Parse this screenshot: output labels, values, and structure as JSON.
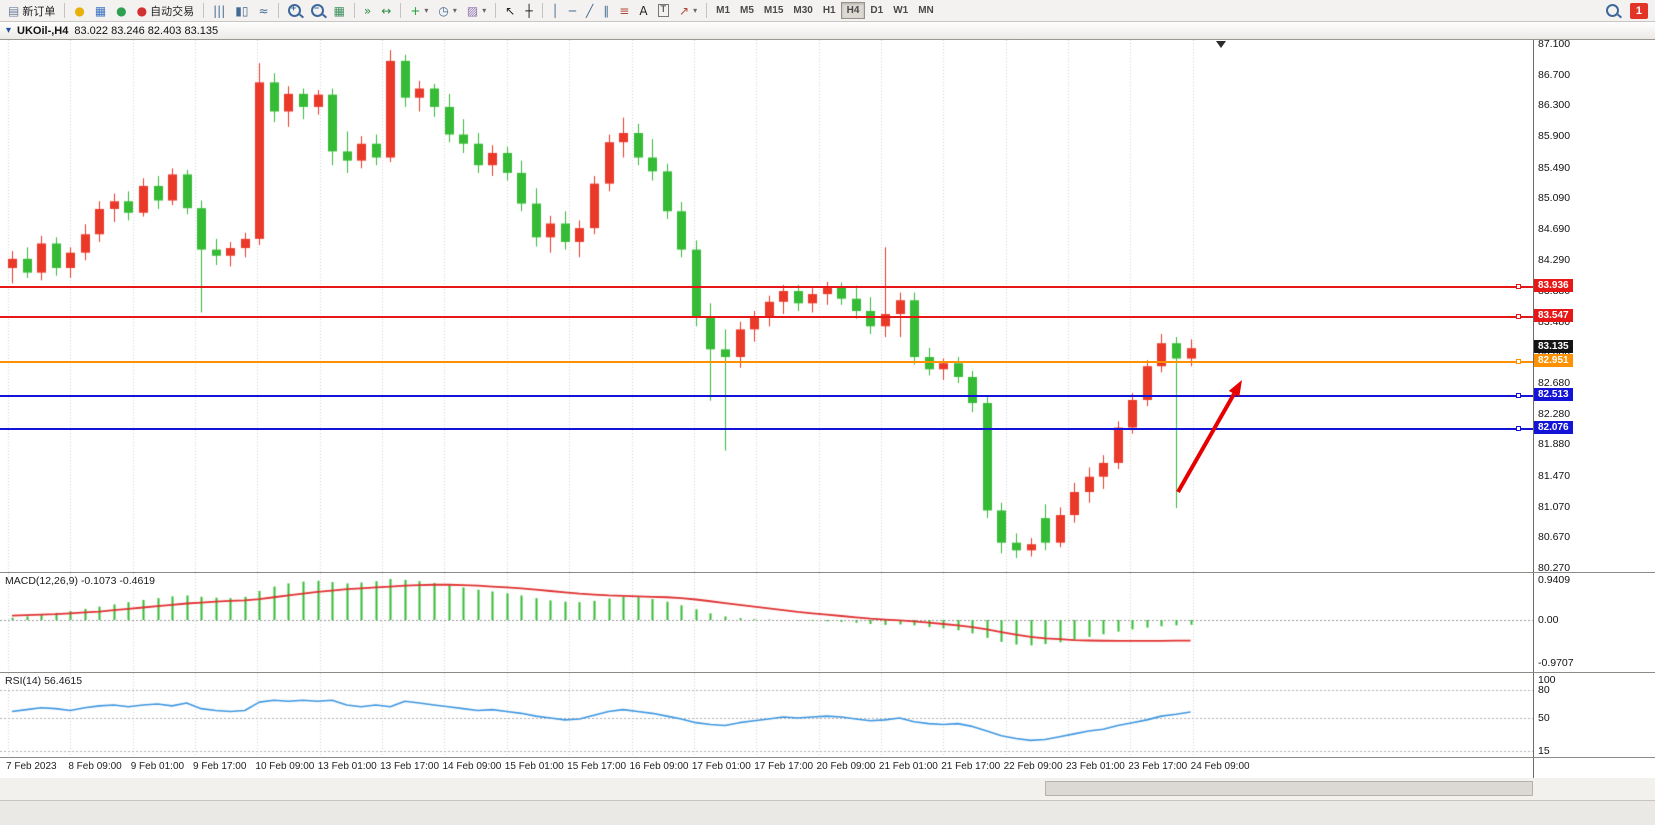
{
  "toolbar": {
    "active_timeframe": "H4",
    "notification_badge": "1",
    "items": [
      {
        "t": "btn",
        "name": "new-order-button",
        "icon": "new-order-icon",
        "glyph": "▤",
        "color": "#6b7f9e",
        "label": "新订单"
      },
      {
        "t": "sep"
      },
      {
        "t": "btn",
        "name": "market-watch-button",
        "icon": "market-watch-icon",
        "glyph": "●",
        "color": "#e8b00a"
      },
      {
        "t": "btn",
        "name": "data-window-button",
        "icon": "data-window-icon",
        "glyph": "▦",
        "color": "#3b74c0"
      },
      {
        "t": "btn",
        "name": "navigator-button",
        "icon": "navigator-icon",
        "glyph": "●",
        "color": "#2fa052"
      },
      {
        "t": "btn",
        "name": "autotrading-button",
        "icon": "autotrading-icon",
        "glyph": "●",
        "color": "#d23131",
        "label": "自动交易"
      },
      {
        "t": "sep"
      },
      {
        "t": "btn",
        "name": "bar-chart-button",
        "icon": "bar-chart-icon",
        "glyph": "|||",
        "color": "#456a92"
      },
      {
        "t": "btn",
        "name": "candlestick-chart-button",
        "icon": "candlestick-icon",
        "glyph": "▮▯",
        "color": "#456a92"
      },
      {
        "t": "btn",
        "name": "line-chart-button",
        "icon": "line-chart-icon",
        "glyph": "≈",
        "color": "#456a92"
      },
      {
        "t": "sep"
      },
      {
        "t": "mag",
        "name": "zoom-in-button",
        "icon": "zoom-in-icon",
        "sign": "+"
      },
      {
        "t": "mag",
        "name": "zoom-out-button",
        "icon": "zoom-out-icon",
        "sign": "−"
      },
      {
        "t": "btn",
        "name": "tile-windows-button",
        "icon": "tile-windows-icon",
        "glyph": "▦",
        "color": "#3f8f5f"
      },
      {
        "t": "sep"
      },
      {
        "t": "btn",
        "name": "auto-scroll-button",
        "icon": "auto-scroll-icon",
        "glyph": "»",
        "color": "#2f8f46"
      },
      {
        "t": "btn",
        "name": "chart-shift-button",
        "icon": "chart-shift-icon",
        "glyph": "↔",
        "color": "#2f8f46"
      },
      {
        "t": "sep"
      },
      {
        "t": "btn",
        "name": "indicators-button",
        "icon": "indicators-icon",
        "glyph": "+",
        "color": "#1f9e3f",
        "dropdown": true
      },
      {
        "t": "btn",
        "name": "periods-button",
        "icon": "clock-icon",
        "glyph": "◷",
        "color": "#456a92",
        "dropdown": true
      },
      {
        "t": "btn",
        "name": "templates-button",
        "icon": "templates-icon",
        "glyph": "▨",
        "color": "#8a6fae",
        "dropdown": true
      },
      {
        "t": "sep"
      },
      {
        "t": "btn",
        "name": "cursor-button",
        "icon": "cursor-icon",
        "glyph": "↖",
        "color": "#222222"
      },
      {
        "t": "btn",
        "name": "crosshair-button",
        "icon": "crosshair-icon",
        "glyph": "┼",
        "color": "#222222"
      },
      {
        "t": "sep"
      },
      {
        "t": "btn",
        "name": "vertical-line-button",
        "icon": "vertical-line-icon",
        "glyph": "│",
        "color": "#456a92"
      },
      {
        "t": "btn",
        "name": "horizontal-line-button",
        "icon": "horizontal-line-icon",
        "glyph": "─",
        "color": "#456a92"
      },
      {
        "t": "btn",
        "name": "trendline-button",
        "icon": "trendline-icon",
        "glyph": "╱",
        "color": "#456a92"
      },
      {
        "t": "btn",
        "name": "channel-button",
        "icon": "channel-icon",
        "glyph": "∥",
        "color": "#456a92"
      },
      {
        "t": "btn",
        "name": "fibonacci-button",
        "icon": "fibonacci-icon",
        "glyph": "≡",
        "color": "#b0483a"
      },
      {
        "t": "btn",
        "name": "text-button",
        "icon": "text-icon",
        "glyph": "A",
        "color": "#222222"
      },
      {
        "t": "btn",
        "name": "text-label-button",
        "icon": "label-icon",
        "glyph": "T",
        "color": "#222222",
        "boxed": true
      },
      {
        "t": "btn",
        "name": "arrows-button",
        "icon": "arrow-icon",
        "glyph": "↗",
        "color": "#b0483a",
        "dropdown": true
      },
      {
        "t": "sep"
      },
      {
        "t": "tf",
        "name": "timeframe-m1-button",
        "label": "M1"
      },
      {
        "t": "tf",
        "name": "timeframe-m5-button",
        "label": "M5"
      },
      {
        "t": "tf",
        "name": "timeframe-m15-button",
        "label": "M15"
      },
      {
        "t": "tf",
        "name": "timeframe-m30-button",
        "label": "M30"
      },
      {
        "t": "tf",
        "name": "timeframe-h1-button",
        "label": "H1"
      },
      {
        "t": "tf",
        "name": "timeframe-h4-button",
        "label": "H4"
      },
      {
        "t": "tf",
        "name": "timeframe-d1-button",
        "label": "D1"
      },
      {
        "t": "tf",
        "name": "timeframe-w1-button",
        "label": "W1"
      },
      {
        "t": "tf",
        "name": "timeframe-mn-button",
        "label": "MN"
      },
      {
        "t": "spring"
      },
      {
        "t": "mag",
        "name": "search-button",
        "icon": "search-icon",
        "sign": ""
      },
      {
        "t": "badge",
        "name": "notification-badge",
        "label": "1"
      }
    ]
  },
  "chart": {
    "title": "UKOil-,H4",
    "ohlc": "83.022 83.246 82.403 83.135"
  },
  "chart_data": {
    "type": "candlestick",
    "symbol": "UKOil-",
    "timeframe": "H4",
    "bull_color": "#ea3829",
    "bear_color": "#35bb35",
    "grid_color": "#d4d4d4",
    "current_bar": {
      "open": "83.022",
      "high": "83.246",
      "low": "82.403",
      "close": "83.135"
    },
    "y_axis": {
      "min": 80.27,
      "max": 87.1,
      "ticks": [
        "87.100",
        "86.700",
        "86.300",
        "85.900",
        "85.490",
        "85.090",
        "84.690",
        "84.290",
        "83.880",
        "83.480",
        "83.080",
        "82.680",
        "82.280",
        "81.880",
        "81.470",
        "81.070",
        "80.670",
        "80.270"
      ]
    },
    "x_labels": [
      "7 Feb 2023",
      "8 Feb 09:00",
      "9 Feb 01:00",
      "9 Feb 17:00",
      "10 Feb 09:00",
      "13 Feb 01:00",
      "13 Feb 17:00",
      "14 Feb 09:00",
      "15 Feb 01:00",
      "15 Feb 17:00",
      "16 Feb 09:00",
      "17 Feb 01:00",
      "17 Feb 17:00",
      "20 Feb 09:00",
      "21 Feb 01:00",
      "21 Feb 17:00",
      "22 Feb 09:00",
      "23 Feb 01:00",
      "23 Feb 17:00",
      "24 Feb 09:00"
    ],
    "candles": [
      [
        84.18,
        84.4,
        83.98,
        84.3
      ],
      [
        84.3,
        84.45,
        84.05,
        84.12
      ],
      [
        84.12,
        84.6,
        84.02,
        84.5
      ],
      [
        84.5,
        84.58,
        84.08,
        84.18
      ],
      [
        84.18,
        84.45,
        84.05,
        84.38
      ],
      [
        84.38,
        84.75,
        84.28,
        84.62
      ],
      [
        84.62,
        85.05,
        84.52,
        84.95
      ],
      [
        84.95,
        85.15,
        84.78,
        85.05
      ],
      [
        85.05,
        85.18,
        84.8,
        84.9
      ],
      [
        84.9,
        85.35,
        84.85,
        85.25
      ],
      [
        85.25,
        85.38,
        84.95,
        85.06
      ],
      [
        85.06,
        85.48,
        85.0,
        85.4
      ],
      [
        85.4,
        85.46,
        84.88,
        84.96
      ],
      [
        84.96,
        85.06,
        83.6,
        84.42
      ],
      [
        84.42,
        84.56,
        84.22,
        84.34
      ],
      [
        84.34,
        84.52,
        84.2,
        84.44
      ],
      [
        84.44,
        84.64,
        84.32,
        84.56
      ],
      [
        84.56,
        86.85,
        84.48,
        86.6
      ],
      [
        86.6,
        86.72,
        86.08,
        86.22
      ],
      [
        86.22,
        86.55,
        86.02,
        86.45
      ],
      [
        86.45,
        86.52,
        86.12,
        86.28
      ],
      [
        86.28,
        86.5,
        86.18,
        86.44
      ],
      [
        86.44,
        86.52,
        85.52,
        85.7
      ],
      [
        85.7,
        85.96,
        85.42,
        85.58
      ],
      [
        85.58,
        85.9,
        85.48,
        85.8
      ],
      [
        85.8,
        85.92,
        85.52,
        85.62
      ],
      [
        85.62,
        87.02,
        85.56,
        86.88
      ],
      [
        86.88,
        86.96,
        86.28,
        86.4
      ],
      [
        86.4,
        86.62,
        86.22,
        86.52
      ],
      [
        86.52,
        86.58,
        86.15,
        86.28
      ],
      [
        86.28,
        86.45,
        85.82,
        85.92
      ],
      [
        85.92,
        86.12,
        85.68,
        85.8
      ],
      [
        85.8,
        85.94,
        85.42,
        85.52
      ],
      [
        85.52,
        85.78,
        85.38,
        85.68
      ],
      [
        85.68,
        85.76,
        85.32,
        85.42
      ],
      [
        85.42,
        85.58,
        84.92,
        85.02
      ],
      [
        85.02,
        85.22,
        84.46,
        84.58
      ],
      [
        84.58,
        84.86,
        84.38,
        84.76
      ],
      [
        84.76,
        84.92,
        84.42,
        84.52
      ],
      [
        84.52,
        84.8,
        84.32,
        84.7
      ],
      [
        84.7,
        85.38,
        84.62,
        85.28
      ],
      [
        85.28,
        85.92,
        85.18,
        85.82
      ],
      [
        85.82,
        86.14,
        85.62,
        85.94
      ],
      [
        85.94,
        86.06,
        85.52,
        85.62
      ],
      [
        85.62,
        85.86,
        85.32,
        85.44
      ],
      [
        85.44,
        85.54,
        84.82,
        84.92
      ],
      [
        84.92,
        85.04,
        84.32,
        84.42
      ],
      [
        84.42,
        84.54,
        83.42,
        83.54
      ],
      [
        83.54,
        83.72,
        82.45,
        83.12
      ],
      [
        83.12,
        83.38,
        81.8,
        83.02
      ],
      [
        83.02,
        83.48,
        82.88,
        83.38
      ],
      [
        83.38,
        83.62,
        83.22,
        83.54
      ],
      [
        83.54,
        83.82,
        83.42,
        83.74
      ],
      [
        83.74,
        83.96,
        83.58,
        83.88
      ],
      [
        83.88,
        83.96,
        83.62,
        83.72
      ],
      [
        83.72,
        83.92,
        83.6,
        83.84
      ],
      [
        83.84,
        84.0,
        83.7,
        83.93
      ],
      [
        83.93,
        83.99,
        83.7,
        83.78
      ],
      [
        83.78,
        83.95,
        83.52,
        83.62
      ],
      [
        83.62,
        83.8,
        83.32,
        83.42
      ],
      [
        83.42,
        84.45,
        83.28,
        83.58
      ],
      [
        83.58,
        83.86,
        83.28,
        83.76
      ],
      [
        83.76,
        83.86,
        82.92,
        83.02
      ],
      [
        83.02,
        83.14,
        82.78,
        82.86
      ],
      [
        82.86,
        83.0,
        82.72,
        82.94
      ],
      [
        82.94,
        83.02,
        82.68,
        82.76
      ],
      [
        82.76,
        82.84,
        82.3,
        82.42
      ],
      [
        82.42,
        82.5,
        80.92,
        81.02
      ],
      [
        81.02,
        81.12,
        80.46,
        80.6
      ],
      [
        80.6,
        80.72,
        80.4,
        80.5
      ],
      [
        80.5,
        80.66,
        80.42,
        80.58
      ],
      [
        80.92,
        81.1,
        80.5,
        80.6
      ],
      [
        80.6,
        81.06,
        80.54,
        80.96
      ],
      [
        80.96,
        81.38,
        80.86,
        81.26
      ],
      [
        81.26,
        81.58,
        81.12,
        81.46
      ],
      [
        81.46,
        81.74,
        81.3,
        81.64
      ],
      [
        81.64,
        82.18,
        81.56,
        82.1
      ],
      [
        82.1,
        82.55,
        82.02,
        82.46
      ],
      [
        82.46,
        82.98,
        82.38,
        82.9
      ],
      [
        82.9,
        83.32,
        82.82,
        83.2
      ],
      [
        83.2,
        83.28,
        81.05,
        83.0
      ],
      [
        83.0,
        83.25,
        82.9,
        83.135
      ]
    ],
    "levels": [
      {
        "name": "resistance-line-83936",
        "value": 83.936,
        "label": "83.936",
        "color": "#e81717"
      },
      {
        "name": "resistance-line-83547",
        "value": 83.547,
        "label": "83.547",
        "color": "#e81717"
      },
      {
        "name": "pivot-line-82951",
        "value": 82.951,
        "label": "82.951",
        "color": "#ff9100"
      },
      {
        "name": "support-line-82513",
        "value": 82.513,
        "label": "82.513",
        "color": "#1414d8"
      },
      {
        "name": "support-line-82076",
        "value": 82.076,
        "label": "82.076",
        "color": "#1414d8"
      }
    ],
    "current_price": {
      "value": 83.135,
      "label": "83.135",
      "color": "#141414"
    },
    "annotation_arrow": {
      "from": [
        1178,
        452
      ],
      "to": [
        1242,
        340
      ],
      "color": "#e60000",
      "width": 4
    },
    "indicators": {
      "macd": {
        "label": "MACD(12,26,9) -0.1073 -0.4619",
        "axis": [
          "0.9409",
          "0.00",
          "-0.9707"
        ],
        "axis_values": [
          0.9409,
          0.0,
          -0.9707
        ],
        "histogram_color": "#35bb35",
        "signal_color": "#e03030",
        "histogram": [
          0.05,
          0.08,
          0.12,
          0.16,
          0.2,
          0.25,
          0.3,
          0.35,
          0.4,
          0.45,
          0.49,
          0.53,
          0.55,
          0.52,
          0.5,
          0.49,
          0.52,
          0.65,
          0.75,
          0.82,
          0.86,
          0.88,
          0.85,
          0.82,
          0.84,
          0.87,
          0.92,
          0.9,
          0.87,
          0.83,
          0.78,
          0.73,
          0.68,
          0.64,
          0.6,
          0.55,
          0.49,
          0.44,
          0.41,
          0.4,
          0.43,
          0.48,
          0.52,
          0.51,
          0.47,
          0.41,
          0.33,
          0.24,
          0.15,
          0.08,
          0.04,
          0.02,
          0.01,
          0.0,
          -0.01,
          -0.02,
          -0.03,
          -0.04,
          -0.06,
          -0.09,
          -0.11,
          -0.1,
          -0.12,
          -0.16,
          -0.19,
          -0.23,
          -0.3,
          -0.4,
          -0.49,
          -0.55,
          -0.57,
          -0.54,
          -0.5,
          -0.44,
          -0.38,
          -0.32,
          -0.26,
          -0.21,
          -0.17,
          -0.14,
          -0.12,
          -0.107
        ],
        "signal": [
          0.1,
          0.11,
          0.12,
          0.13,
          0.15,
          0.17,
          0.19,
          0.22,
          0.25,
          0.28,
          0.31,
          0.34,
          0.37,
          0.39,
          0.41,
          0.43,
          0.44,
          0.47,
          0.51,
          0.55,
          0.59,
          0.63,
          0.66,
          0.69,
          0.71,
          0.73,
          0.75,
          0.77,
          0.78,
          0.79,
          0.79,
          0.78,
          0.77,
          0.75,
          0.73,
          0.71,
          0.68,
          0.65,
          0.62,
          0.59,
          0.57,
          0.55,
          0.54,
          0.53,
          0.52,
          0.51,
          0.49,
          0.46,
          0.42,
          0.38,
          0.34,
          0.3,
          0.26,
          0.22,
          0.18,
          0.15,
          0.12,
          0.09,
          0.06,
          0.03,
          0.01,
          -0.01,
          -0.03,
          -0.06,
          -0.09,
          -0.12,
          -0.16,
          -0.21,
          -0.27,
          -0.33,
          -0.38,
          -0.41,
          -0.43,
          -0.45,
          -0.46,
          -0.465,
          -0.468,
          -0.47,
          -0.469,
          -0.467,
          -0.464,
          -0.4619
        ]
      },
      "rsi": {
        "label": "RSI(14) 56.4615",
        "axis": [
          "100",
          "80",
          "50",
          "15"
        ],
        "axis_values": [
          100,
          80,
          50,
          15
        ],
        "levels": [
          80,
          50,
          15
        ],
        "line_color": "#3d96e0",
        "values": [
          57,
          59,
          61,
          60,
          58,
          61,
          63,
          64,
          62,
          64,
          65,
          63,
          66,
          60,
          58,
          57,
          58,
          67,
          69,
          68,
          69,
          68,
          69,
          64,
          62,
          64,
          62,
          68,
          66,
          64,
          62,
          60,
          58,
          59,
          57,
          55,
          52,
          50,
          48,
          49,
          53,
          57,
          59,
          57,
          55,
          52,
          49,
          45,
          43,
          42,
          45,
          47,
          49,
          51,
          50,
          51,
          52,
          51,
          49,
          47,
          48,
          50,
          46,
          44,
          43,
          44,
          41,
          36,
          31,
          28,
          26,
          27,
          30,
          33,
          36,
          38,
          42,
          45,
          48,
          52,
          54,
          56.4615
        ]
      }
    }
  }
}
